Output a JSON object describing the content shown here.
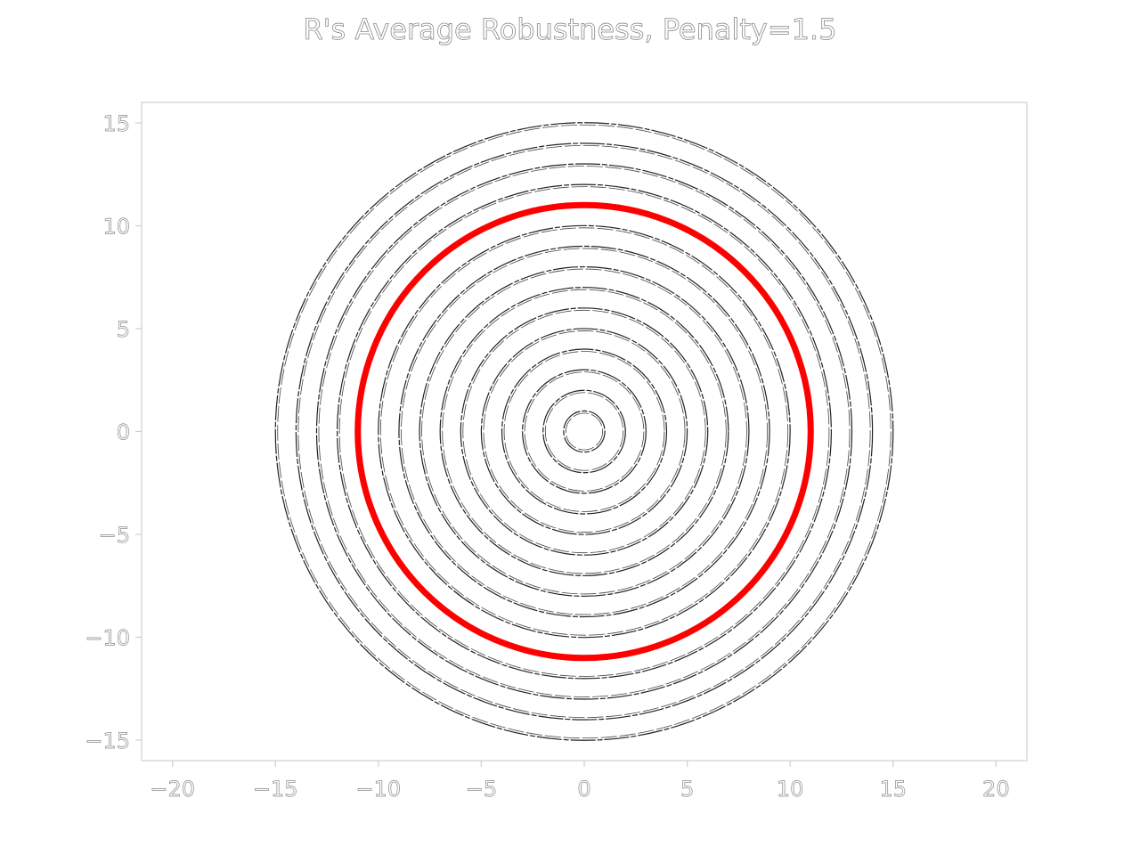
{
  "chart_data": {
    "type": "contour",
    "title": "R's Average Robustness, Penalty=1.5",
    "xlabel": "",
    "ylabel": "",
    "xlim": [
      -21.5,
      21.5
    ],
    "ylim": [
      -16,
      16
    ],
    "x_ticks": [
      -20,
      -15,
      -10,
      -5,
      0,
      5,
      10,
      15,
      20
    ],
    "y_ticks": [
      -15,
      -10,
      -5,
      0,
      5,
      10,
      15
    ],
    "x_tick_labels": [
      "−20",
      "−15",
      "−10",
      "−5",
      "0",
      "5",
      "10",
      "15",
      "20"
    ],
    "y_tick_labels": [
      "−15",
      "−10",
      "−5",
      "0",
      "5",
      "10",
      "15"
    ],
    "grid": false,
    "center": [
      0,
      0
    ],
    "contour_radii": [
      1,
      2,
      3,
      4,
      5,
      6,
      7,
      8,
      9,
      10,
      12,
      13,
      14,
      15
    ],
    "highlight": {
      "radius": 11,
      "color": "#ff0000"
    },
    "contour_color": "#000000"
  }
}
